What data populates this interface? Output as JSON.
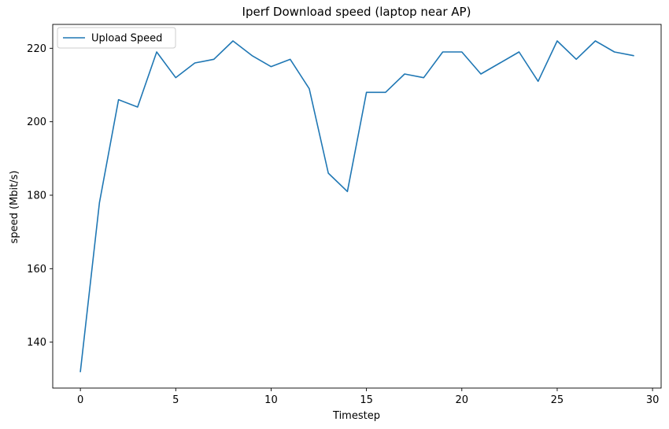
{
  "chart_data": {
    "type": "line",
    "title": "Iperf Download speed (laptop near AP)",
    "xlabel": "Timestep",
    "ylabel": "speed (Mbit/s)",
    "xlim": [
      -1.45,
      30.45
    ],
    "ylim": [
      127.5,
      226.5
    ],
    "xticks": [
      0,
      5,
      10,
      15,
      20,
      25,
      30
    ],
    "yticks": [
      140,
      160,
      180,
      200,
      220
    ],
    "grid": false,
    "legend_position": "top-left",
    "series": [
      {
        "name": "Upload Speed",
        "color": "#1f77b4",
        "x": [
          0,
          1,
          2,
          3,
          4,
          5,
          6,
          7,
          8,
          9,
          10,
          11,
          12,
          13,
          14,
          15,
          16,
          17,
          18,
          19,
          20,
          21,
          22,
          23,
          24,
          25,
          26,
          27,
          28,
          29
        ],
        "values": [
          132,
          178,
          206,
          204,
          219,
          212,
          216,
          217,
          222,
          218,
          215,
          217,
          209,
          186,
          181,
          208,
          208,
          213,
          212,
          219,
          219,
          213,
          216,
          219,
          211,
          222,
          217,
          222,
          219,
          218
        ]
      }
    ]
  }
}
